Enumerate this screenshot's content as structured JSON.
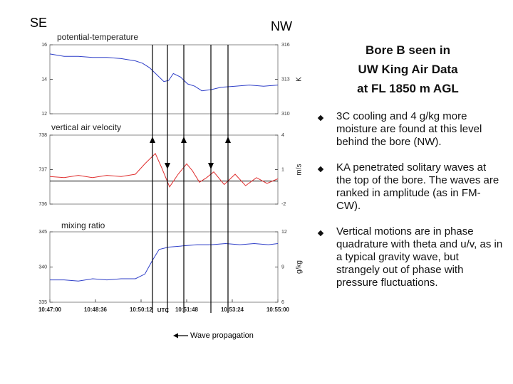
{
  "corner_labels": {
    "left": "SE",
    "right": "NW"
  },
  "title_lines": [
    "Bore B seen in",
    "UW King Air Data",
    "at FL 1850 m AGL"
  ],
  "bullets": [
    "3C cooling and 4 g/kg more moisture are found at this level behind the bore (NW).",
    "KA penetrated solitary waves at the top of the bore.  The waves are ranked in amplitude (as in FM-CW).",
    "Vertical motions are in phase quadrature with theta and u/v, as in a typical gravity wave, but strangely out of phase with pressure fluctuations."
  ],
  "footer": "Wave propagation",
  "chart_data": [
    {
      "type": "line",
      "title": "potential-temperature",
      "y2label": "K",
      "xlim": [
        "10:47:00",
        "10:55:00"
      ],
      "ylim": [
        12,
        16
      ],
      "yticks": [
        16,
        14,
        12
      ],
      "y2lim": [
        310,
        316
      ],
      "y2ticks": [
        316,
        313,
        310
      ],
      "series": [
        {
          "color": "#2f3fc8",
          "axis": "y2",
          "x": [
            "10:47:00",
            "10:47:30",
            "10:48:00",
            "10:48:30",
            "10:49:00",
            "10:49:30",
            "10:50:00",
            "10:50:15",
            "10:50:30",
            "10:50:45",
            "10:51:00",
            "10:51:10",
            "10:51:20",
            "10:51:35",
            "10:51:50",
            "10:52:05",
            "10:52:20",
            "10:52:40",
            "10:53:00",
            "10:53:30",
            "10:54:00",
            "10:54:30",
            "10:55:00"
          ],
          "values": [
            315.2,
            315.0,
            315.0,
            314.9,
            314.9,
            314.8,
            314.6,
            314.4,
            314.0,
            313.4,
            312.8,
            312.9,
            313.5,
            313.2,
            312.6,
            312.4,
            312.0,
            312.1,
            312.3,
            312.4,
            312.5,
            312.4,
            312.5
          ]
        }
      ]
    },
    {
      "type": "line",
      "title": "vertical air velocity",
      "y2label": "m/s",
      "xlim": [
        "10:47:00",
        "10:55:00"
      ],
      "ylim": [
        736,
        738
      ],
      "yticks": [
        738,
        737,
        736
      ],
      "y2lim": [
        -2,
        4
      ],
      "y2ticks": [
        4,
        1,
        -2
      ],
      "reference_line": 0,
      "series": [
        {
          "color": "#e03030",
          "axis": "y2",
          "x": [
            "10:47:00",
            "10:47:30",
            "10:48:00",
            "10:48:30",
            "10:49:00",
            "10:49:30",
            "10:50:00",
            "10:50:20",
            "10:50:42",
            "10:50:55",
            "10:51:12",
            "10:51:30",
            "10:51:48",
            "10:52:00",
            "10:52:15",
            "10:52:30",
            "10:52:45",
            "10:53:07",
            "10:53:30",
            "10:53:52",
            "10:54:15",
            "10:54:37",
            "10:55:00"
          ],
          "values": [
            0.4,
            0.3,
            0.5,
            0.3,
            0.5,
            0.4,
            0.6,
            1.5,
            2.4,
            1.2,
            -0.5,
            0.6,
            1.5,
            0.9,
            -0.1,
            0.3,
            0.8,
            -0.3,
            0.6,
            -0.4,
            0.3,
            -0.2,
            0.2
          ]
        }
      ]
    },
    {
      "type": "line",
      "title": "mixing ratio",
      "y2label": "g/kg",
      "xlabel": "UTC",
      "xlim": [
        "10:47:00",
        "10:55:00"
      ],
      "xticks": [
        "10:47:00",
        "10:48:36",
        "10:50:12",
        "10:51:48",
        "10:53:24",
        "10:55:00"
      ],
      "ylim": [
        335,
        345
      ],
      "yticks": [
        345,
        340,
        335
      ],
      "y2lim": [
        6,
        12
      ],
      "y2ticks": [
        12,
        9,
        6
      ],
      "series": [
        {
          "color": "#2f3fc8",
          "axis": "y2",
          "x": [
            "10:47:00",
            "10:47:30",
            "10:48:00",
            "10:48:30",
            "10:49:00",
            "10:49:30",
            "10:50:00",
            "10:50:20",
            "10:50:35",
            "10:50:50",
            "10:51:10",
            "10:51:40",
            "10:52:10",
            "10:52:40",
            "10:53:10",
            "10:53:40",
            "10:54:10",
            "10:54:40",
            "10:55:00"
          ],
          "values": [
            7.9,
            7.9,
            7.8,
            8.0,
            7.9,
            8.0,
            8.0,
            8.4,
            9.5,
            10.5,
            10.7,
            10.8,
            10.9,
            10.9,
            11.0,
            10.9,
            11.0,
            10.9,
            11.0
          ]
        }
      ]
    }
  ]
}
